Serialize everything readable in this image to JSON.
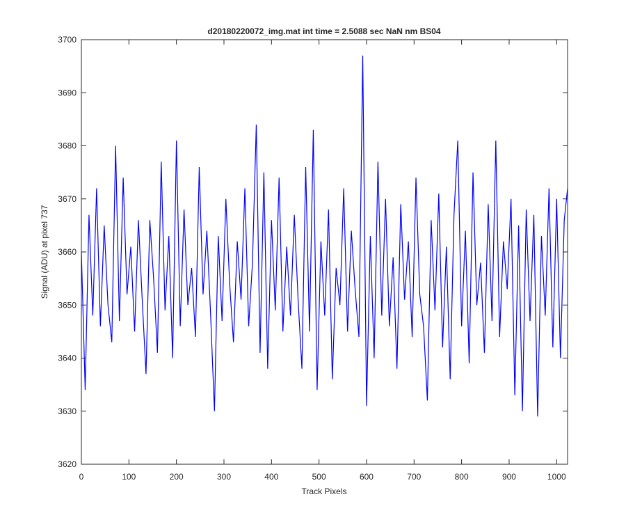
{
  "chart_data": {
    "type": "line",
    "title": "d20180220072_img.mat int time = 2.5088 sec  NaN nm BS04",
    "xlabel": "Track Pixels",
    "ylabel": "Signal (ADU) at pixel 737",
    "color": "#0000ff",
    "xlim": [
      0,
      1023
    ],
    "ylim": [
      3620,
      3700
    ],
    "xticks": [
      0,
      100,
      200,
      300,
      400,
      500,
      600,
      700,
      800,
      900,
      1000
    ],
    "yticks": [
      3620,
      3630,
      3640,
      3650,
      3660,
      3670,
      3680,
      3690,
      3700
    ],
    "grid": false,
    "x": [
      0,
      8,
      16,
      24,
      32,
      40,
      48,
      56,
      64,
      72,
      80,
      88,
      96,
      104,
      112,
      120,
      128,
      136,
      144,
      152,
      160,
      168,
      176,
      184,
      192,
      200,
      208,
      216,
      224,
      232,
      240,
      248,
      256,
      264,
      272,
      280,
      288,
      296,
      304,
      312,
      320,
      328,
      336,
      344,
      352,
      360,
      368,
      376,
      384,
      392,
      400,
      408,
      416,
      424,
      432,
      440,
      448,
      456,
      464,
      472,
      480,
      488,
      496,
      504,
      512,
      520,
      528,
      536,
      544,
      552,
      560,
      568,
      576,
      584,
      592,
      600,
      608,
      616,
      624,
      632,
      640,
      648,
      656,
      664,
      672,
      680,
      688,
      696,
      704,
      712,
      720,
      728,
      736,
      744,
      752,
      760,
      768,
      776,
      784,
      792,
      800,
      808,
      816,
      824,
      832,
      840,
      848,
      856,
      864,
      872,
      880,
      888,
      896,
      904,
      912,
      920,
      928,
      936,
      944,
      952,
      960,
      968,
      976,
      984,
      992,
      1000,
      1008,
      1016,
      1023
    ],
    "values": [
      3660,
      3634,
      3667,
      3648,
      3672,
      3646,
      3665,
      3650,
      3643,
      3680,
      3647,
      3674,
      3652,
      3661,
      3645,
      3666,
      3651,
      3637,
      3666,
      3655,
      3641,
      3677,
      3649,
      3663,
      3640,
      3681,
      3646,
      3668,
      3650,
      3657,
      3644,
      3676,
      3652,
      3664,
      3648,
      3630,
      3663,
      3647,
      3670,
      3654,
      3643,
      3662,
      3651,
      3672,
      3646,
      3658,
      3684,
      3641,
      3675,
      3638,
      3666,
      3649,
      3674,
      3645,
      3661,
      3648,
      3667,
      3651,
      3638,
      3676,
      3645,
      3683,
      3634,
      3662,
      3648,
      3668,
      3636,
      3657,
      3650,
      3672,
      3645,
      3664,
      3653,
      3644,
      3697,
      3631,
      3663,
      3640,
      3677,
      3648,
      3670,
      3646,
      3659,
      3638,
      3669,
      3651,
      3662,
      3644,
      3674,
      3652,
      3646,
      3632,
      3666,
      3649,
      3671,
      3642,
      3661,
      3636,
      3667,
      3681,
      3646,
      3664,
      3639,
      3675,
      3650,
      3658,
      3641,
      3669,
      3647,
      3681,
      3644,
      3662,
      3653,
      3670,
      3633,
      3665,
      3630,
      3668,
      3647,
      3667,
      3629,
      3663,
      3648,
      3672,
      3642,
      3670,
      3640,
      3666,
      3672
    ]
  }
}
